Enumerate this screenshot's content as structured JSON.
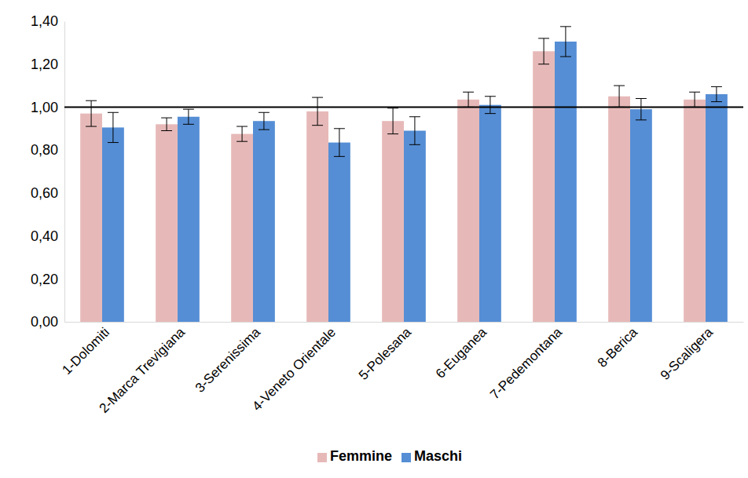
{
  "chart_data": {
    "type": "bar",
    "categories": [
      "1-Dolomiti",
      "2-Marca Trevigiana",
      "3-Serenissima",
      "4-Veneto Orientale",
      "5-Polesana",
      "6-Euganea",
      "7-Pedemontana",
      "8-Berica",
      "9-Scaligera"
    ],
    "series": [
      {
        "name": "Femmine",
        "color": "#e6b9b8",
        "values": [
          0.97,
          0.92,
          0.875,
          0.98,
          0.935,
          1.035,
          1.26,
          1.05,
          1.035
        ],
        "errors": [
          0.06,
          0.03,
          0.035,
          0.065,
          0.06,
          0.035,
          0.06,
          0.05,
          0.035
        ]
      },
      {
        "name": "Maschi",
        "color": "#558ed5",
        "values": [
          0.905,
          0.955,
          0.935,
          0.835,
          0.89,
          1.01,
          1.305,
          0.99,
          1.06
        ],
        "errors": [
          0.07,
          0.035,
          0.04,
          0.065,
          0.065,
          0.04,
          0.07,
          0.05,
          0.035
        ]
      }
    ],
    "reference_line": 1,
    "ylim": [
      0,
      1.4
    ],
    "yticks": [
      {
        "value": 0,
        "label": "0,00"
      },
      {
        "value": 0.2,
        "label": "0,20"
      },
      {
        "value": 0.4,
        "label": "0,40"
      },
      {
        "value": 0.6,
        "label": "0,60"
      },
      {
        "value": 0.8,
        "label": "0,80"
      },
      {
        "value": 1,
        "label": "1,00"
      },
      {
        "value": 1.2,
        "label": "1,20"
      },
      {
        "value": 1.4,
        "label": "1,40"
      }
    ],
    "grid": false,
    "legend": "bottom"
  }
}
